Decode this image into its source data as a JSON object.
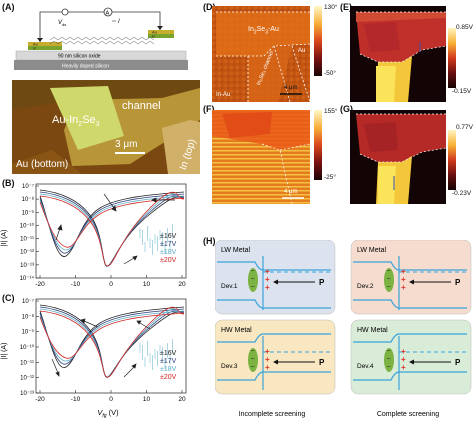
{
  "figure": {
    "panel_labels": {
      "a": "(A)",
      "b": "(B)",
      "c": "(C)",
      "d": "(D)",
      "e": "(E)",
      "f": "(F)",
      "g": "(G)",
      "h": "(H)"
    }
  },
  "panel_a": {
    "schematic": {
      "vds_label": "V",
      "vds_sub": "ds",
      "current_label": "I",
      "meter_label": "A",
      "electrode_left": [
        "Au",
        "In"
      ],
      "electrode_right": [
        "Au",
        "In"
      ],
      "oxide_label": "90 nm silicon oxide",
      "substrate_label": "Heavily doped silicon"
    },
    "micrograph": {
      "au_label": "Au-In",
      "au_label_sub": "2",
      "au_label_end": "Se",
      "au_label_sub2": "3",
      "channel_label": "channel",
      "scale_label": "3 μm",
      "bottom_label": "Au (bottom)",
      "top_label": "In (top)"
    }
  },
  "panel_b": {
    "ylabel": "|I| (A)",
    "y_ticks": [
      "10⁻⁷",
      "10⁻⁸",
      "10⁻⁹",
      "10⁻¹⁰",
      "10⁻¹¹",
      "10⁻¹²",
      "10⁻¹³",
      "10⁻¹⁴"
    ],
    "x_ticks": [
      "-20",
      "-10",
      "0",
      "10",
      "20"
    ],
    "legend": [
      {
        "label": "±16V",
        "color": "#222222"
      },
      {
        "label": "±17V",
        "color": "#2a3d7a"
      },
      {
        "label": "±18V",
        "color": "#5aaec8"
      },
      {
        "label": "±20V",
        "color": "#d11f1f"
      }
    ]
  },
  "panel_c": {
    "ylabel": "|I| (A)",
    "y_ticks": [
      "10⁻⁷",
      "10⁻⁸",
      "10⁻⁹",
      "10⁻¹⁰",
      "10⁻¹¹",
      "10⁻¹²",
      "10⁻¹³"
    ],
    "x_ticks": [
      "-20",
      "-10",
      "0",
      "10",
      "20"
    ],
    "xlabel": "V",
    "xlabel_sub": "fg",
    "xlabel_unit": " (V)",
    "legend": [
      {
        "label": "±16V",
        "color": "#222222"
      },
      {
        "label": "±17V",
        "color": "#2a3d7a"
      },
      {
        "label": "±18V",
        "color": "#5aaec8"
      },
      {
        "label": "±20V",
        "color": "#d11f1f"
      }
    ]
  },
  "panel_d": {
    "label_inse": "In",
    "label_inse_sub": "2",
    "label_inse_mid": "Se",
    "label_inse_sub2": "3",
    "label_inse_end": "-Au",
    "label_channel": "In₂Se₃ channel",
    "label_au": "Au",
    "label_inau": "In-Au",
    "scale": "4 μm",
    "cbar_max": "130°",
    "cbar_min": "-50°"
  },
  "panel_e": {
    "cbar_max": "0.85V",
    "cbar_min": "-0.15V"
  },
  "panel_f": {
    "scale": "4 μm",
    "cbar_max": "155°",
    "cbar_min": "-25°"
  },
  "panel_g": {
    "cbar_max": "0.77V",
    "cbar_min": "-0.23V"
  },
  "panel_h": {
    "boxes": [
      {
        "metal": "LW Metal",
        "device": "Dev.1",
        "bg": "#dce3ee"
      },
      {
        "metal": "LW Metal",
        "device": "Dev.2",
        "bg": "#f6dccf"
      },
      {
        "metal": "HW Metal",
        "device": "Dev.3",
        "bg": "#f8e7c0"
      },
      {
        "metal": "HW Metal",
        "device": "Dev.4",
        "bg": "#d9ecd8"
      }
    ],
    "polarization": "P",
    "caption_left": "Incomplete screening",
    "caption_right": "Complete screening"
  },
  "colors": {
    "au_gold": "#c6ad2e",
    "stage_green": "#7aa32e",
    "band_blue": "#3aa3dc",
    "plus_red": "#e0332b",
    "ellipse_green": "#7cb342"
  }
}
